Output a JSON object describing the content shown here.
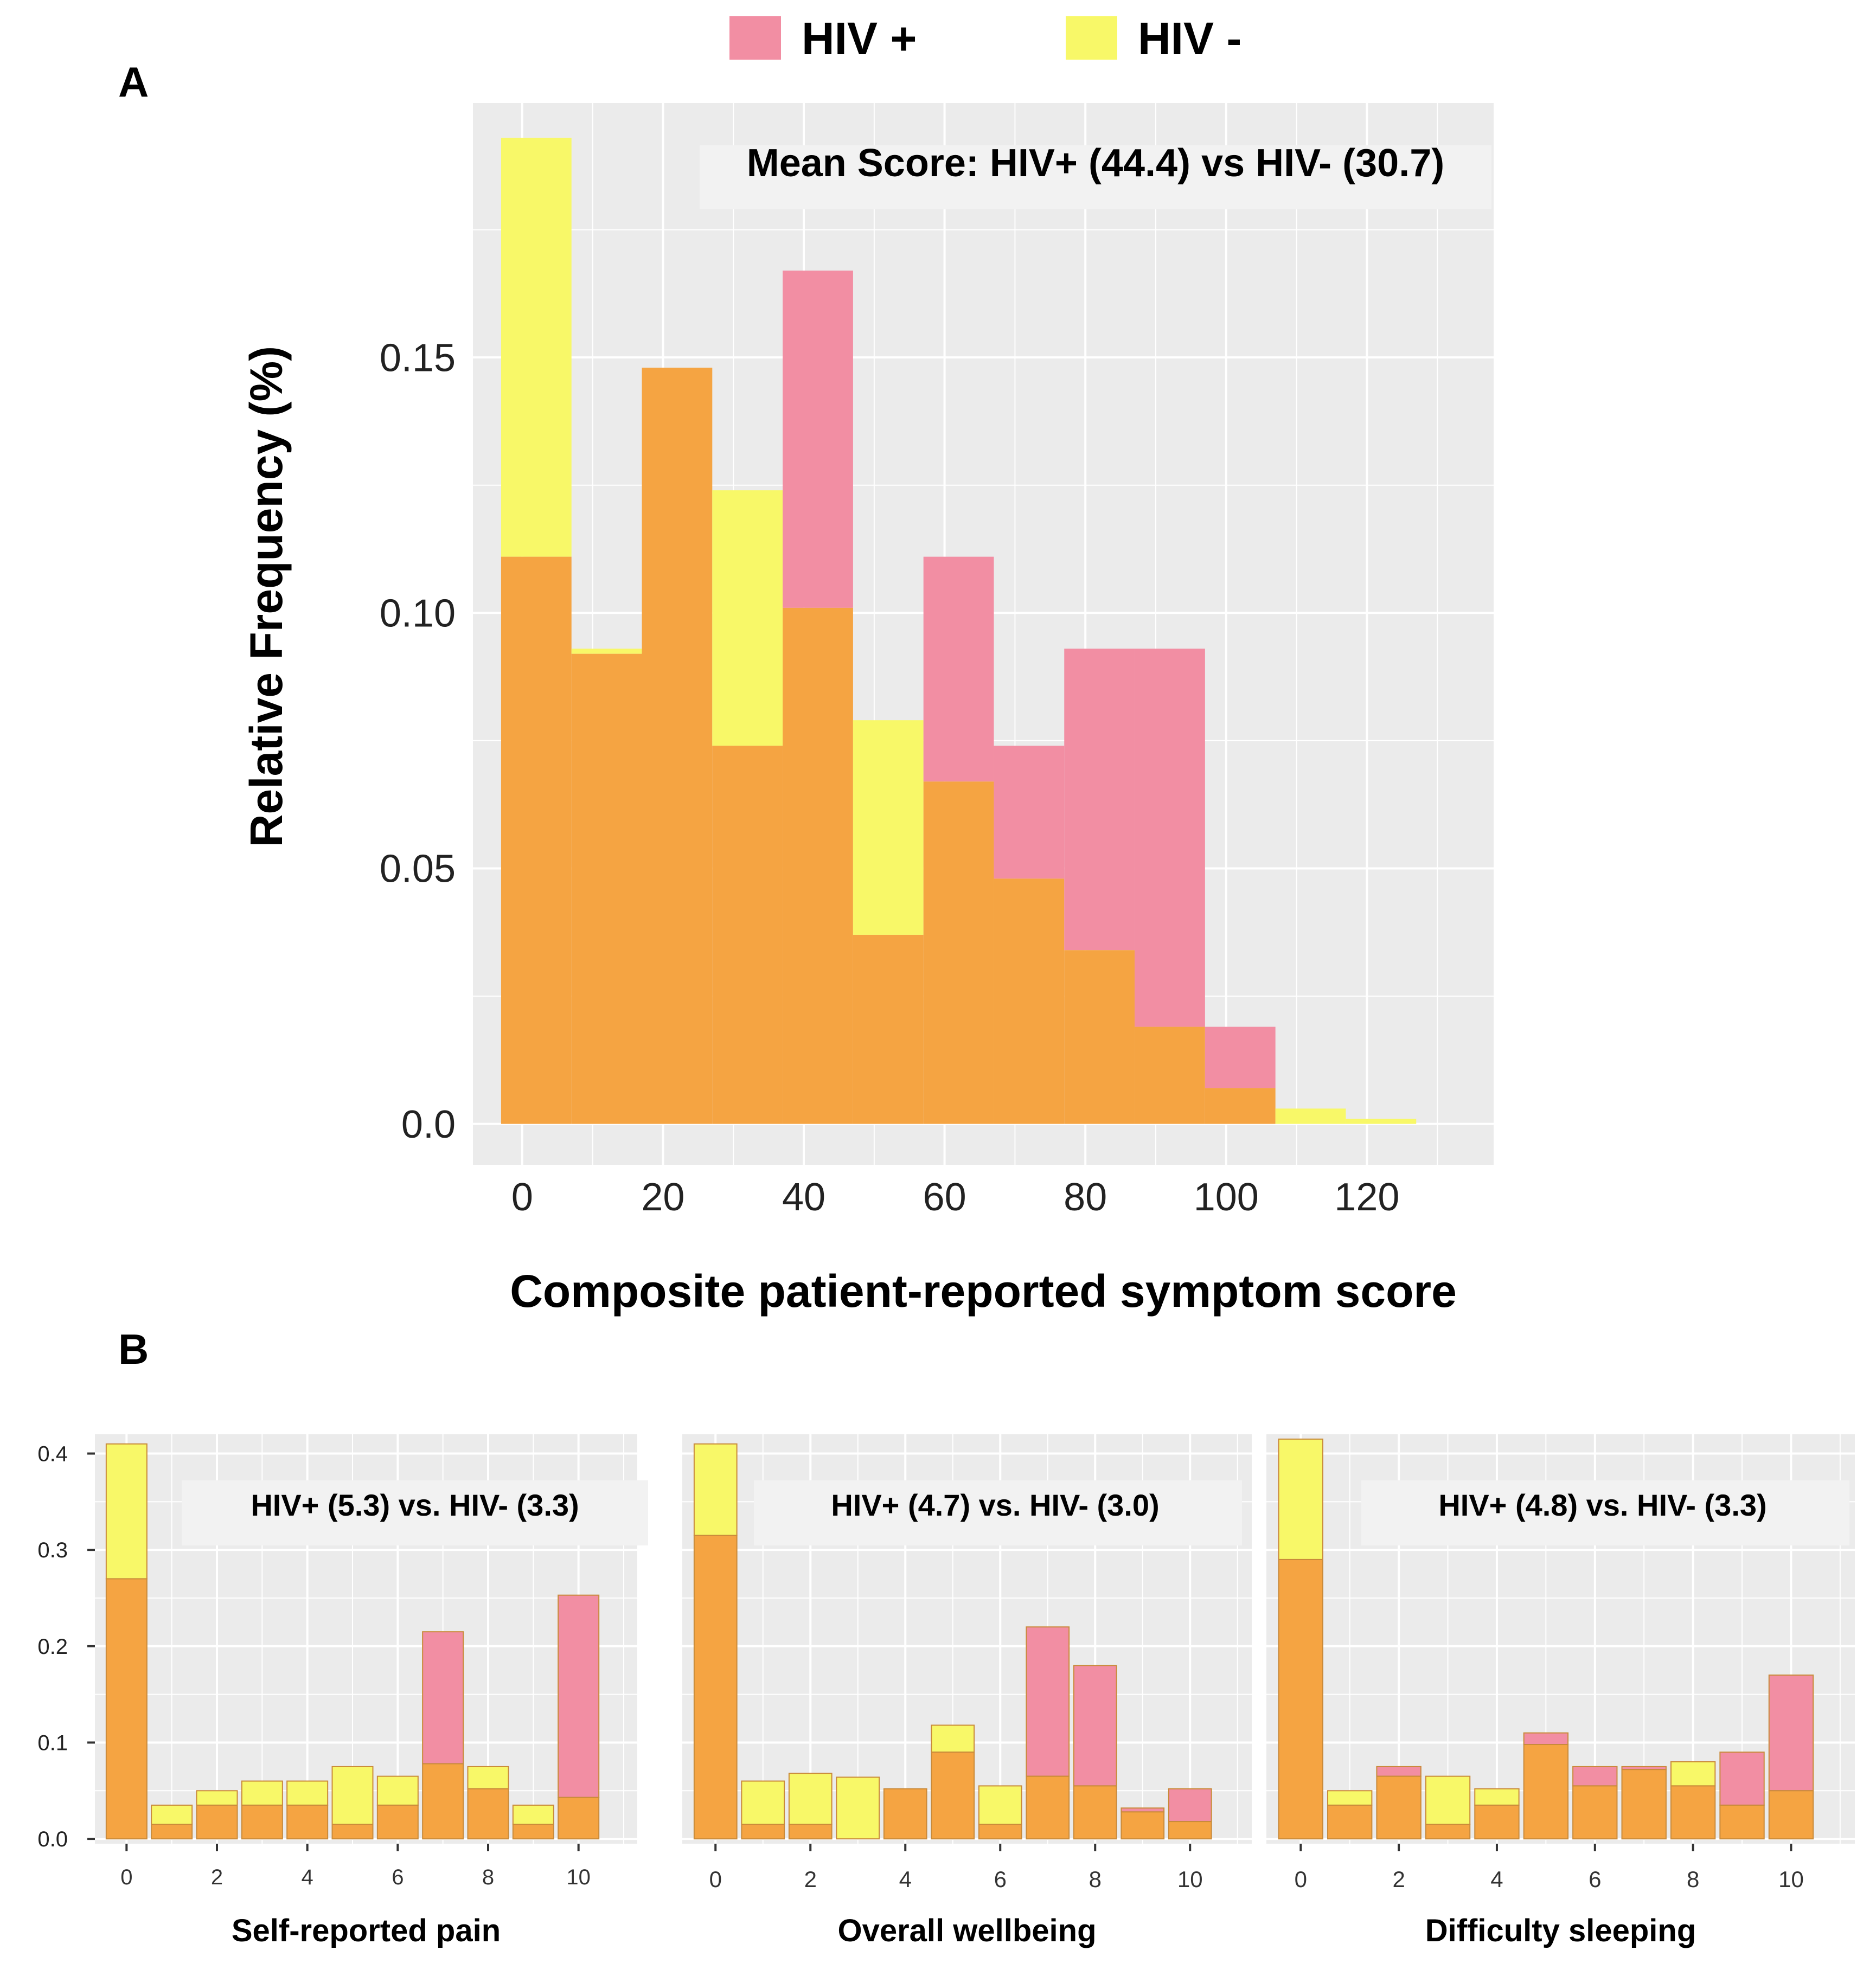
{
  "colors": {
    "hiv_pos": "#f28ea3",
    "hiv_neg": "#f8f868",
    "overlap": "#f5a442",
    "panel_bg": "#ebebeb",
    "grid": "#ffffff",
    "text": "#000000"
  },
  "legend": {
    "items": [
      {
        "label": "HIV +",
        "color": "#f28ea3"
      },
      {
        "label": "HIV -",
        "color": "#f8f868"
      }
    ],
    "placement": "top-center"
  },
  "panels": {
    "a_label": "A",
    "b_label": "B"
  },
  "chart_data": [
    {
      "type": "bar",
      "subtype": "overlaid-histogram",
      "panel": "A",
      "annotation": "Mean Score: HIV+ (44.4) vs HIV- (30.7)",
      "xlabel": "Composite patient-reported symptom score",
      "ylabel": "Relative Frequency (%)",
      "x_ticks": [
        "0",
        "20",
        "40",
        "60",
        "80",
        "100",
        "120"
      ],
      "y_ticks": [
        "0.0",
        "0.05",
        "0.10",
        "0.15"
      ],
      "xlim": [
        -7,
        138
      ],
      "ylim": [
        -0.008,
        0.2
      ],
      "bin_width": 10,
      "bin_starts": [
        -3,
        7,
        17,
        27,
        37,
        47,
        57,
        67,
        77,
        87,
        97,
        107,
        117
      ],
      "series": [
        {
          "name": "HIV +",
          "values": [
            0.111,
            0.092,
            0.148,
            0.074,
            0.167,
            0.037,
            0.111,
            0.074,
            0.093,
            0.093,
            0.019,
            0,
            0
          ]
        },
        {
          "name": "HIV -",
          "values": [
            0.193,
            0.093,
            0.148,
            0.124,
            0.101,
            0.079,
            0.067,
            0.048,
            0.034,
            0.019,
            0.007,
            0.003,
            0.001
          ]
        }
      ],
      "grid": true
    },
    {
      "type": "bar",
      "subtype": "overlaid-histogram",
      "panel": "B",
      "annotation": "HIV+ (5.3) vs. HIV- (3.3)",
      "xlabel": "Self-reported pain",
      "x_ticks": [
        "0",
        "2",
        "4",
        "6",
        "8",
        "10"
      ],
      "y_ticks": [
        "0.0",
        "0.1",
        "0.2",
        "0.3",
        "0.4"
      ],
      "xlim": [
        -0.7,
        11.3
      ],
      "ylim": [
        -0.005,
        0.42
      ],
      "categories": [
        "0",
        "1",
        "2",
        "3",
        "4",
        "5",
        "6",
        "7",
        "8",
        "9",
        "10"
      ],
      "series": [
        {
          "name": "HIV +",
          "values": [
            0.27,
            0.015,
            0.035,
            0.035,
            0.035,
            0.015,
            0.035,
            0.215,
            0.052,
            0.015,
            0.253
          ]
        },
        {
          "name": "HIV -",
          "values": [
            0.41,
            0.035,
            0.05,
            0.06,
            0.06,
            0.075,
            0.065,
            0.078,
            0.075,
            0.035,
            0.043
          ]
        }
      ],
      "grid": true
    },
    {
      "type": "bar",
      "subtype": "overlaid-histogram",
      "panel": "B",
      "annotation": "HIV+ (4.7) vs. HIV- (3.0)",
      "xlabel": "Overall wellbeing",
      "x_ticks": [
        "0",
        "2",
        "4",
        "6",
        "8",
        "10"
      ],
      "y_ticks": [],
      "xlim": [
        -0.7,
        11.3
      ],
      "ylim": [
        -0.005,
        0.42
      ],
      "categories": [
        "0",
        "1",
        "2",
        "3",
        "4",
        "5",
        "6",
        "7",
        "8",
        "9",
        "10"
      ],
      "series": [
        {
          "name": "HIV +",
          "values": [
            0.315,
            0.015,
            0.015,
            0.0,
            0.052,
            0.09,
            0.015,
            0.22,
            0.18,
            0.032,
            0.052
          ]
        },
        {
          "name": "HIV -",
          "values": [
            0.41,
            0.06,
            0.068,
            0.064,
            0.052,
            0.118,
            0.055,
            0.065,
            0.055,
            0.028,
            0.018
          ]
        }
      ],
      "grid": true
    },
    {
      "type": "bar",
      "subtype": "overlaid-histogram",
      "panel": "B",
      "annotation": "HIV+ (4.8) vs. HIV- (3.3)",
      "xlabel": "Difficulty  sleeping",
      "x_ticks": [
        "0",
        "2",
        "4",
        "6",
        "8",
        "10"
      ],
      "y_ticks": [],
      "xlim": [
        -0.7,
        11.3
      ],
      "ylim": [
        -0.005,
        0.42
      ],
      "categories": [
        "0",
        "1",
        "2",
        "3",
        "4",
        "5",
        "6",
        "7",
        "8",
        "9",
        "10"
      ],
      "series": [
        {
          "name": "HIV +",
          "values": [
            0.29,
            0.035,
            0.075,
            0.015,
            0.035,
            0.11,
            0.075,
            0.075,
            0.055,
            0.09,
            0.17
          ]
        },
        {
          "name": "HIV -",
          "values": [
            0.415,
            0.05,
            0.065,
            0.065,
            0.052,
            0.098,
            0.055,
            0.072,
            0.08,
            0.035,
            0.05
          ]
        }
      ],
      "grid": true
    }
  ]
}
